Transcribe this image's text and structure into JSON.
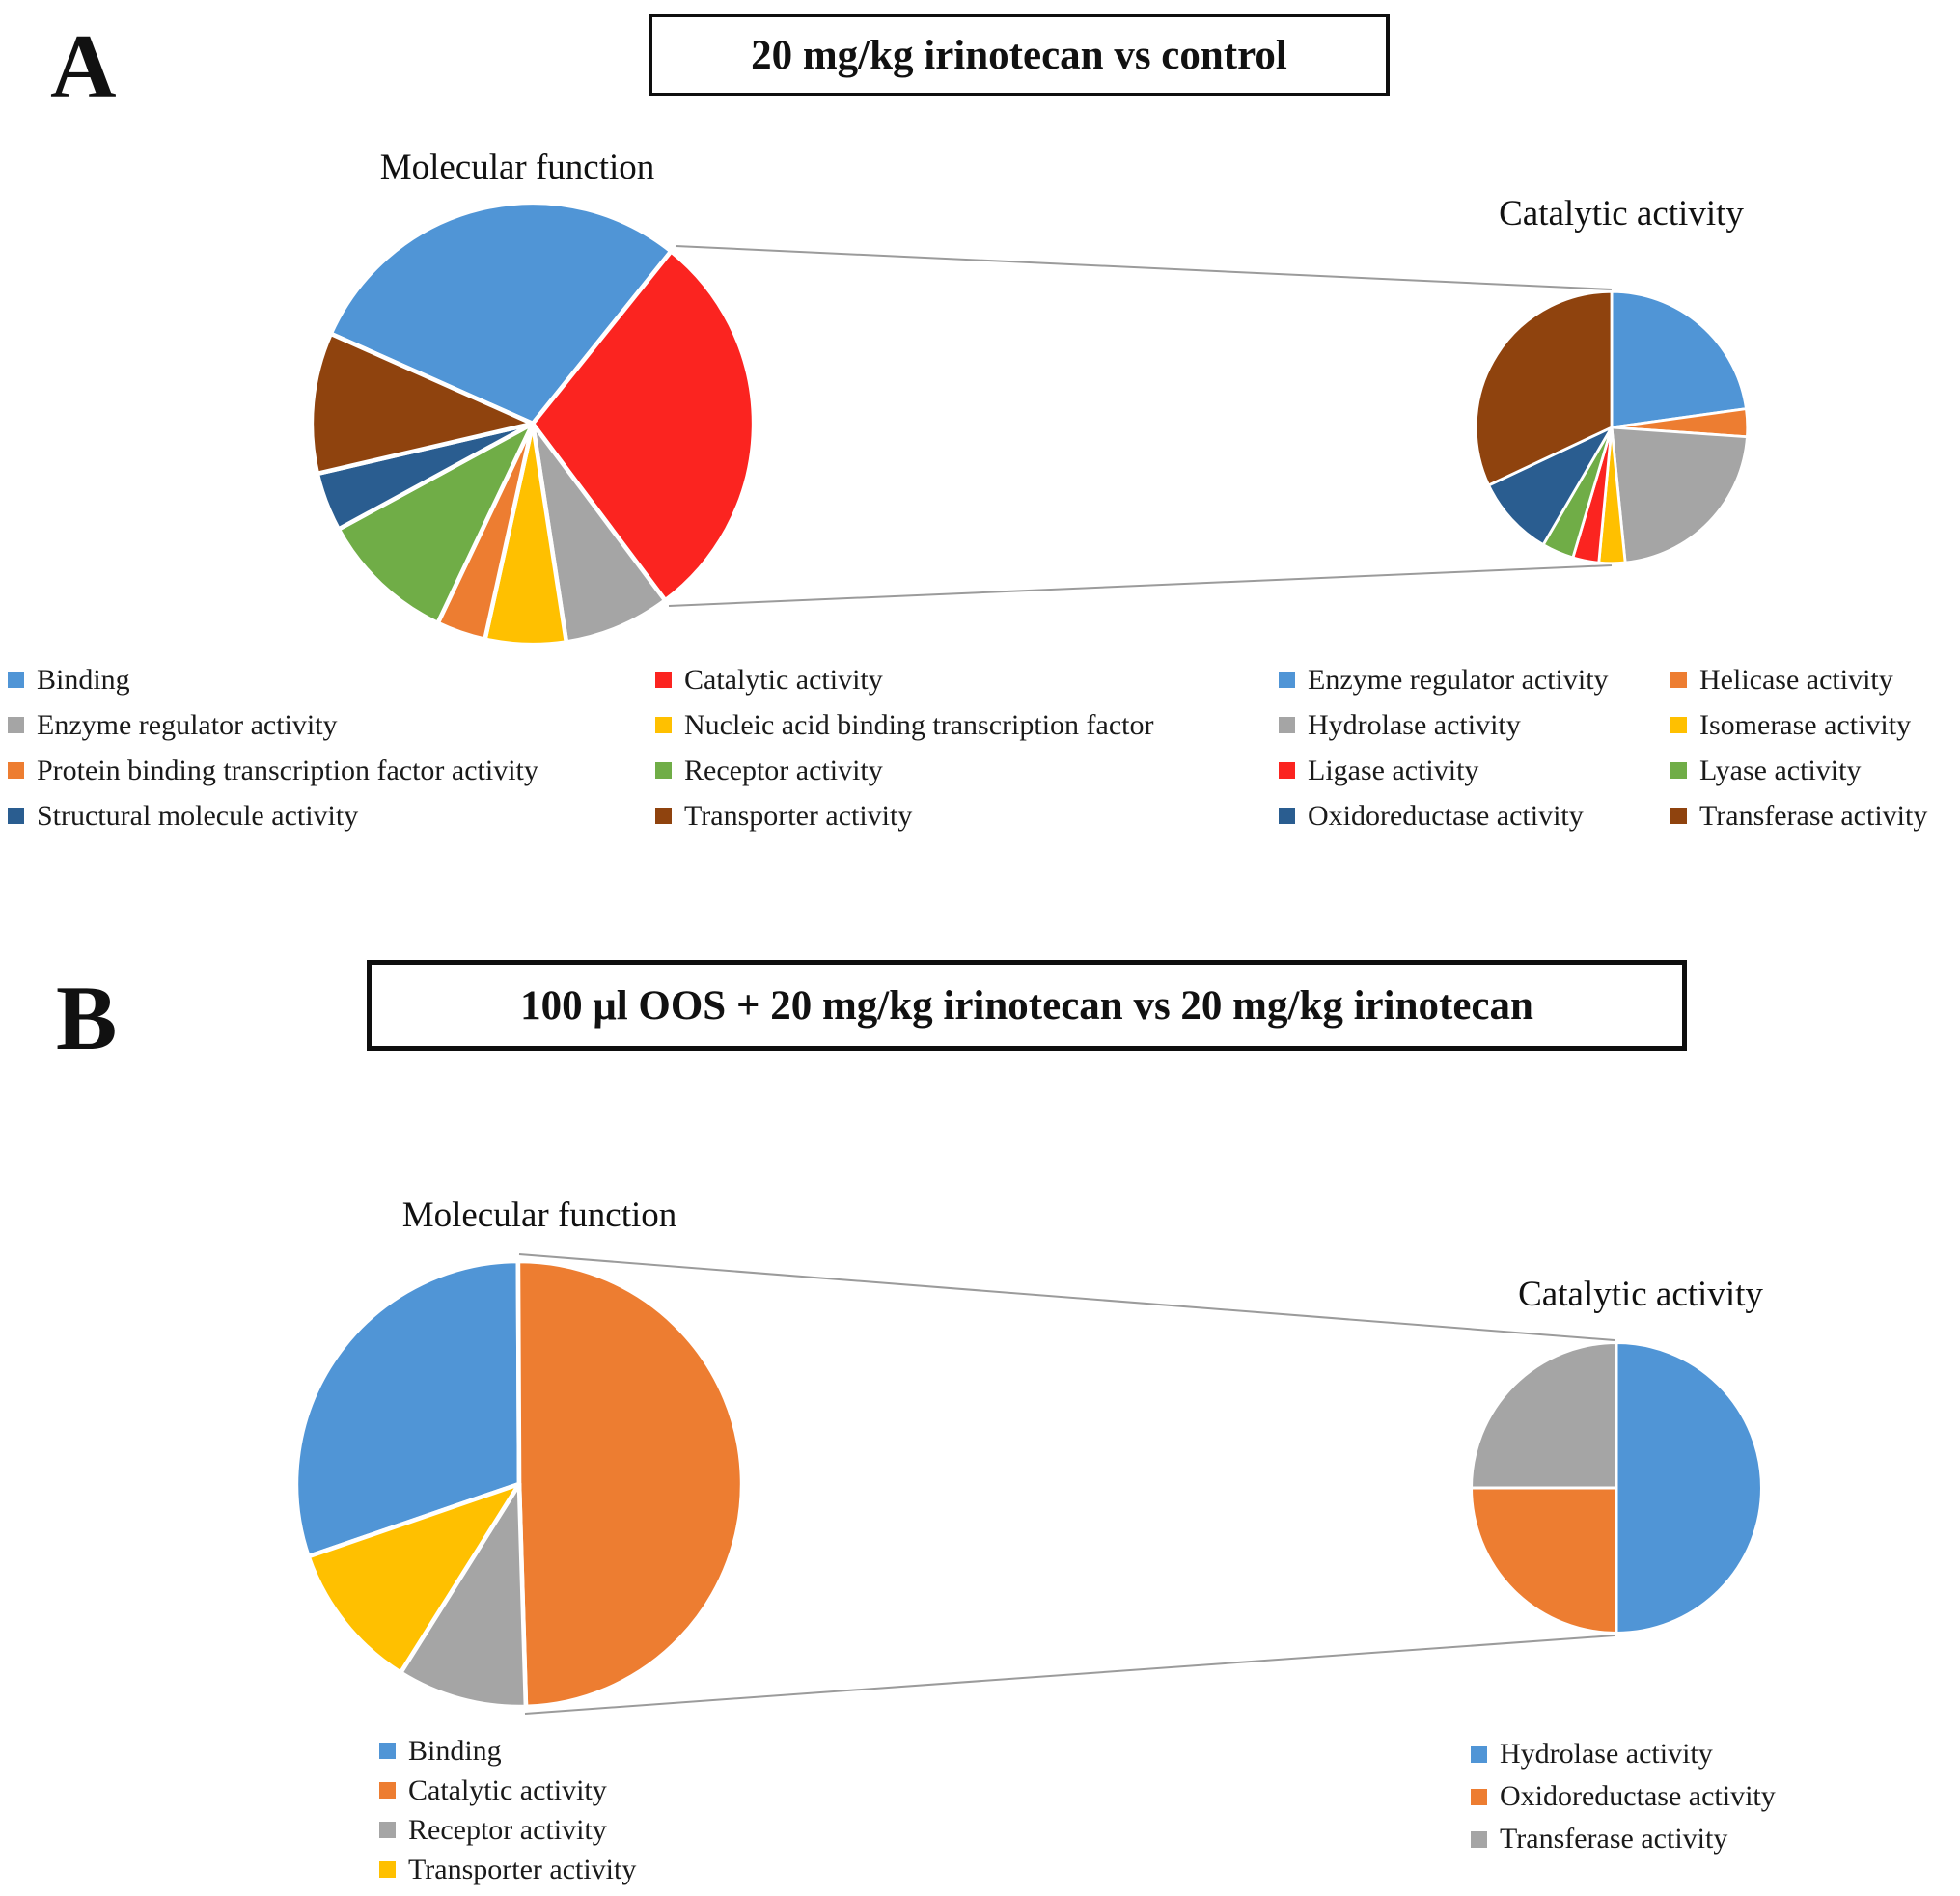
{
  "palette": {
    "blue": "#5095D6",
    "red": "#FB2420",
    "gray": "#A5A5A5",
    "yellow": "#FFC000",
    "orange": "#ED7D31",
    "green": "#70AD47",
    "navy": "#2A5D90",
    "brown": "#8F430E"
  },
  "connector_color": "#9b9b9b",
  "panel_a": {
    "label": "A",
    "title": "20 mg/kg irinotecan vs control"
  },
  "panel_b": {
    "label": "B",
    "title": "100 μl OOS + 20 mg/kg irinotecan vs 20 mg/kg irinotecan"
  },
  "chart_data": [
    {
      "id": "a_main",
      "type": "pie",
      "panel": "A",
      "title": "Molecular function",
      "start_deg": 294,
      "legend_position": "bottom",
      "labels": [
        "Binding",
        "Catalytic activity",
        "Enzyme regulator activity",
        "Nucleic acid binding transcription factor",
        "Protein binding transcription factor activity",
        "Receptor activity",
        "Structural molecule activity",
        "Transporter activity"
      ],
      "values": [
        29.1,
        29.0,
        7.8,
        5.9,
        3.6,
        10.0,
        4.3,
        10.3
      ],
      "colors": [
        "blue",
        "red",
        "gray",
        "yellow",
        "orange",
        "green",
        "navy",
        "brown"
      ]
    },
    {
      "id": "a_sub",
      "type": "pie",
      "panel": "A",
      "title": "Catalytic activity",
      "start_deg": 0,
      "legend_position": "bottom",
      "labels": [
        "Enzyme regulator activity",
        "Helicase activity",
        "Hydrolase activity",
        "Isomerase activity",
        "Ligase activity",
        "Lyase activity",
        "Oxidoreductase activity",
        "Transferase activity"
      ],
      "values": [
        22.8,
        3.3,
        22.3,
        3.1,
        3.1,
        3.8,
        9.6,
        32.0
      ],
      "colors": [
        "blue",
        "orange",
        "gray",
        "yellow",
        "red",
        "green",
        "navy",
        "brown"
      ]
    },
    {
      "id": "b_main",
      "type": "pie",
      "panel": "B",
      "title": "Molecular function",
      "start_deg": 251,
      "legend_position": "bottom",
      "labels": [
        "Binding",
        "Catalytic activity",
        "Receptor activity",
        "Transporter activity"
      ],
      "values": [
        30.2,
        49.6,
        9.4,
        10.8
      ],
      "colors": [
        "blue",
        "orange",
        "gray",
        "yellow"
      ]
    },
    {
      "id": "b_sub",
      "type": "pie",
      "panel": "B",
      "title": "Catalytic activity",
      "start_deg": 0,
      "legend_position": "bottom",
      "labels": [
        "Hydrolase activity",
        "Oxidoreductase activity",
        "Transferase activity"
      ],
      "values": [
        50,
        25,
        25
      ],
      "colors": [
        "blue",
        "orange",
        "gray"
      ]
    }
  ]
}
